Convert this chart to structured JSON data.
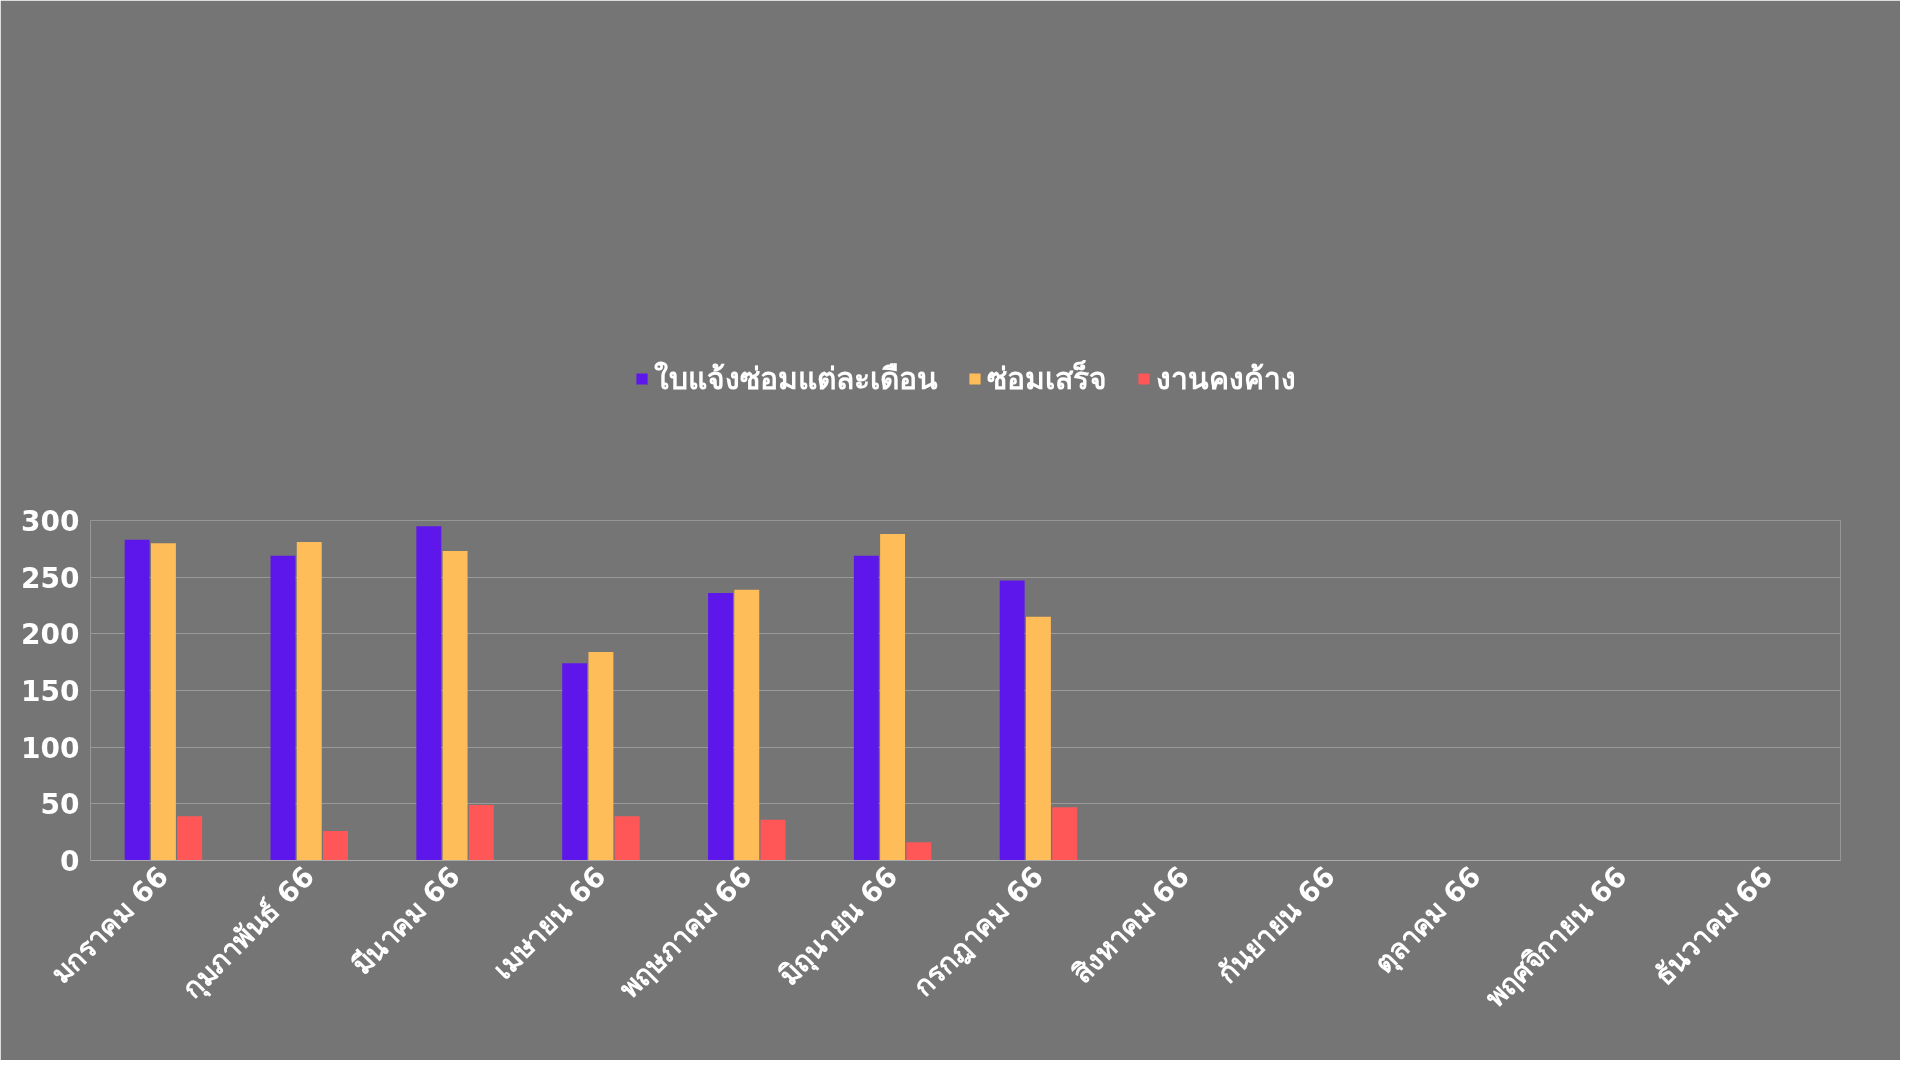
{
  "chart_data": {
    "type": "bar",
    "categories": [
      "มกราคม 66",
      "กุมภาพันธ์ 66",
      "มีนาคม 66",
      "เมษายน 66",
      "พฤษภาคม 66",
      "มิถุนายน 66",
      "กรกฎาคม 66",
      "สิงหาคม 66",
      "กันยายน 66",
      "ตุลาคม 66",
      "พฤศจิกายน 66",
      "ธันวาคม 66"
    ],
    "series": [
      {
        "name": "ใบแจ้งซ่อมแต่ละเดือน",
        "color": "#5e17eb",
        "values": [
          283,
          269,
          295,
          174,
          236,
          269,
          247,
          null,
          null,
          null,
          null,
          null
        ]
      },
      {
        "name": "ซ่อมเสร็จ",
        "color": "#ffbd59",
        "values": [
          280,
          281,
          273,
          184,
          239,
          288,
          215,
          null,
          null,
          null,
          null,
          null
        ]
      },
      {
        "name": "งานคงค้าง",
        "color": "#ff5757",
        "values": [
          39,
          26,
          49,
          39,
          36,
          16,
          47,
          null,
          null,
          null,
          null,
          null
        ]
      }
    ],
    "ylim": [
      0,
      300
    ],
    "yticks": [
      0,
      50,
      100,
      150,
      200,
      250,
      300
    ],
    "grid": "y",
    "legend": "top"
  }
}
